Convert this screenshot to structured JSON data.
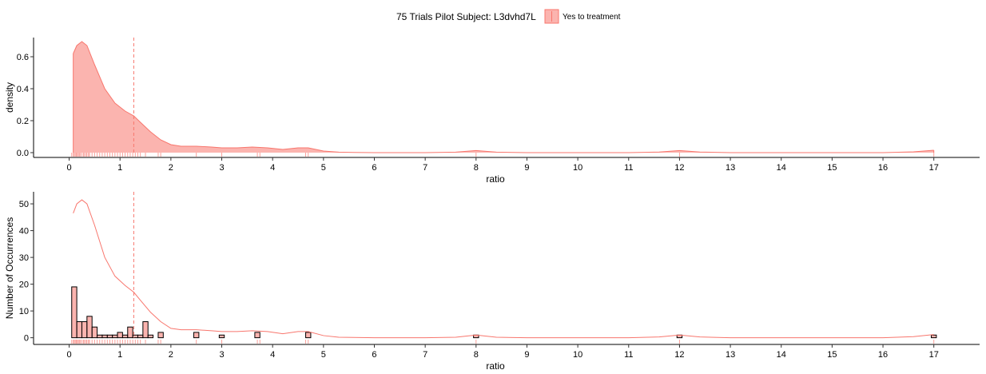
{
  "legend": {
    "title": "75 Trials Pilot Subject:  L3dvhd7L",
    "entry": "Yes to treatment"
  },
  "colors": {
    "fill": "#f8766d",
    "line": "#f8766d",
    "bar_outline": "#000000"
  },
  "chart_data": [
    {
      "type": "area",
      "xlabel": "ratio",
      "ylabel": "density",
      "xlim": [
        -0.7,
        17.9
      ],
      "ylim": [
        -0.03,
        0.72
      ],
      "xticks": [
        0,
        1,
        2,
        3,
        4,
        5,
        6,
        7,
        8,
        9,
        10,
        11,
        12,
        13,
        14,
        15,
        16,
        17
      ],
      "yticks": [
        0.0,
        0.2,
        0.4,
        0.6
      ],
      "ytick_labels": [
        "0.0",
        "0.2",
        "0.4",
        "0.6"
      ],
      "mean_line_x": 1.27,
      "series": [
        {
          "name": "Yes to treatment",
          "x": [
            0.08,
            0.15,
            0.25,
            0.35,
            0.5,
            0.7,
            0.9,
            1.1,
            1.27,
            1.4,
            1.6,
            1.8,
            2.0,
            2.2,
            2.5,
            2.8,
            3.0,
            3.3,
            3.6,
            3.9,
            4.2,
            4.5,
            4.7,
            5.0,
            5.3,
            5.6,
            6.0,
            7.0,
            7.6,
            8.0,
            8.4,
            9.0,
            10.0,
            11.0,
            11.6,
            12.0,
            12.4,
            13.0,
            14.0,
            15.0,
            16.0,
            16.6,
            17.0
          ],
          "y": [
            0.62,
            0.67,
            0.695,
            0.67,
            0.55,
            0.4,
            0.31,
            0.26,
            0.23,
            0.19,
            0.13,
            0.08,
            0.05,
            0.04,
            0.04,
            0.035,
            0.03,
            0.03,
            0.035,
            0.03,
            0.02,
            0.03,
            0.03,
            0.01,
            0.003,
            0.001,
            0.0,
            0.0,
            0.003,
            0.013,
            0.003,
            0.0,
            0.0,
            0.0,
            0.004,
            0.013,
            0.004,
            0.0,
            0.0,
            0.0,
            0.0,
            0.005,
            0.015
          ]
        }
      ],
      "rug": [
        0.05,
        0.08,
        0.1,
        0.12,
        0.14,
        0.16,
        0.18,
        0.2,
        0.22,
        0.25,
        0.28,
        0.3,
        0.33,
        0.35,
        0.38,
        0.4,
        0.45,
        0.5,
        0.55,
        0.6,
        0.65,
        0.7,
        0.75,
        0.8,
        0.85,
        0.9,
        0.95,
        1.0,
        1.05,
        1.1,
        1.15,
        1.2,
        1.25,
        1.3,
        1.35,
        1.4,
        1.5,
        1.75,
        1.8,
        2.5,
        3.0,
        3.7,
        3.75,
        4.65,
        4.7,
        8.0,
        12.0,
        17.0
      ]
    },
    {
      "type": "bar",
      "xlabel": "ratio",
      "ylabel": "Number of Occurrences",
      "xlim": [
        -0.7,
        17.9
      ],
      "ylim": [
        -2.5,
        54.5
      ],
      "xticks": [
        0,
        1,
        2,
        3,
        4,
        5,
        6,
        7,
        8,
        9,
        10,
        11,
        12,
        13,
        14,
        15,
        16,
        17
      ],
      "yticks": [
        0,
        10,
        20,
        30,
        40,
        50
      ],
      "bin_width": 0.1,
      "bins": [
        {
          "x": 0.1,
          "count": 19
        },
        {
          "x": 0.2,
          "count": 6
        },
        {
          "x": 0.3,
          "count": 6
        },
        {
          "x": 0.4,
          "count": 8
        },
        {
          "x": 0.5,
          "count": 4
        },
        {
          "x": 0.6,
          "count": 1
        },
        {
          "x": 0.7,
          "count": 1
        },
        {
          "x": 0.8,
          "count": 1
        },
        {
          "x": 0.9,
          "count": 1
        },
        {
          "x": 1.0,
          "count": 2
        },
        {
          "x": 1.1,
          "count": 1
        },
        {
          "x": 1.2,
          "count": 4
        },
        {
          "x": 1.3,
          "count": 1
        },
        {
          "x": 1.4,
          "count": 1
        },
        {
          "x": 1.5,
          "count": 6
        },
        {
          "x": 1.6,
          "count": 1
        },
        {
          "x": 1.8,
          "count": 2
        },
        {
          "x": 2.5,
          "count": 2
        },
        {
          "x": 3.0,
          "count": 1
        },
        {
          "x": 3.7,
          "count": 2
        },
        {
          "x": 4.7,
          "count": 2
        },
        {
          "x": 8.0,
          "count": 1
        },
        {
          "x": 12.0,
          "count": 1
        },
        {
          "x": 17.0,
          "count": 1
        }
      ],
      "mean_line_x": 1.27,
      "density_overlay": {
        "x": [
          0.08,
          0.15,
          0.25,
          0.35,
          0.5,
          0.7,
          0.9,
          1.1,
          1.27,
          1.4,
          1.6,
          1.8,
          2.0,
          2.2,
          2.5,
          2.8,
          3.0,
          3.3,
          3.6,
          3.9,
          4.2,
          4.5,
          4.7,
          5.0,
          5.3,
          5.6,
          6.0,
          7.0,
          7.6,
          8.0,
          8.4,
          9.0,
          10.0,
          11.0,
          11.6,
          12.0,
          12.4,
          13.0,
          14.0,
          15.0,
          16.0,
          16.6,
          17.0
        ],
        "y": [
          46.5,
          50.0,
          51.5,
          50.0,
          42.0,
          30.0,
          23.0,
          19.5,
          17.0,
          14.0,
          9.5,
          6.0,
          3.5,
          3.0,
          3.0,
          2.6,
          2.3,
          2.3,
          2.6,
          2.3,
          1.5,
          2.3,
          2.3,
          0.8,
          0.2,
          0.1,
          0.0,
          0.0,
          0.2,
          1.0,
          0.2,
          0.0,
          0.0,
          0.0,
          0.3,
          1.0,
          0.3,
          0.0,
          0.0,
          0.0,
          0.0,
          0.4,
          1.2
        ]
      }
    }
  ]
}
